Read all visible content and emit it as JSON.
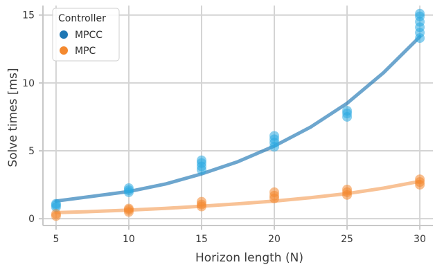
{
  "chart_data": {
    "type": "scatter",
    "title": "",
    "xlabel": "Horizon length (N)",
    "ylabel": "Solve times [ms]",
    "xlim": [
      4.1,
      30.9
    ],
    "ylim": [
      -0.5,
      15.7
    ],
    "xticks": [
      5,
      10,
      15,
      20,
      25,
      30
    ],
    "yticks": [
      0,
      5,
      10,
      15
    ],
    "grid": true,
    "legend": {
      "title": "Controller",
      "position": "top-left"
    },
    "series": [
      {
        "name": "MPCC",
        "color": "#1f77b4",
        "marker_color": "#29aae2",
        "points": [
          {
            "x": 5,
            "y": 0.85
          },
          {
            "x": 5,
            "y": 1.0
          },
          {
            "x": 5,
            "y": 1.1
          },
          {
            "x": 10,
            "y": 1.95
          },
          {
            "x": 10,
            "y": 2.1
          },
          {
            "x": 10,
            "y": 2.25
          },
          {
            "x": 15,
            "y": 3.6
          },
          {
            "x": 15,
            "y": 3.85
          },
          {
            "x": 15,
            "y": 4.1
          },
          {
            "x": 15,
            "y": 4.3
          },
          {
            "x": 20,
            "y": 5.3
          },
          {
            "x": 20,
            "y": 5.6
          },
          {
            "x": 20,
            "y": 5.85
          },
          {
            "x": 20,
            "y": 6.1
          },
          {
            "x": 25,
            "y": 7.5
          },
          {
            "x": 25,
            "y": 7.75
          },
          {
            "x": 25,
            "y": 7.95
          },
          {
            "x": 30,
            "y": 13.3
          },
          {
            "x": 30,
            "y": 13.7
          },
          {
            "x": 30,
            "y": 14.1
          },
          {
            "x": 30,
            "y": 14.5
          },
          {
            "x": 30,
            "y": 14.9
          },
          {
            "x": 30,
            "y": 15.1
          }
        ],
        "fit": [
          {
            "x": 5,
            "y": 1.3
          },
          {
            "x": 7.5,
            "y": 1.65
          },
          {
            "x": 10,
            "y": 2.0
          },
          {
            "x": 12.5,
            "y": 2.55
          },
          {
            "x": 15,
            "y": 3.3
          },
          {
            "x": 17.5,
            "y": 4.2
          },
          {
            "x": 20,
            "y": 5.35
          },
          {
            "x": 22.5,
            "y": 6.75
          },
          {
            "x": 25,
            "y": 8.5
          },
          {
            "x": 27.5,
            "y": 10.75
          },
          {
            "x": 30,
            "y": 13.4
          }
        ]
      },
      {
        "name": "MPC",
        "color": "#f5a25d",
        "marker_color": "#f4892f",
        "points": [
          {
            "x": 5,
            "y": 0.2
          },
          {
            "x": 5,
            "y": 0.35
          },
          {
            "x": 10,
            "y": 0.5
          },
          {
            "x": 10,
            "y": 0.65
          },
          {
            "x": 10,
            "y": 0.75
          },
          {
            "x": 15,
            "y": 0.9
          },
          {
            "x": 15,
            "y": 1.05
          },
          {
            "x": 15,
            "y": 1.25
          },
          {
            "x": 20,
            "y": 1.5
          },
          {
            "x": 20,
            "y": 1.7
          },
          {
            "x": 20,
            "y": 1.95
          },
          {
            "x": 25,
            "y": 1.75
          },
          {
            "x": 25,
            "y": 1.95
          },
          {
            "x": 25,
            "y": 2.15
          },
          {
            "x": 30,
            "y": 2.5
          },
          {
            "x": 30,
            "y": 2.7
          },
          {
            "x": 30,
            "y": 2.9
          }
        ],
        "fit": [
          {
            "x": 5,
            "y": 0.45
          },
          {
            "x": 7.5,
            "y": 0.53
          },
          {
            "x": 10,
            "y": 0.63
          },
          {
            "x": 12.5,
            "y": 0.76
          },
          {
            "x": 15,
            "y": 0.92
          },
          {
            "x": 17.5,
            "y": 1.1
          },
          {
            "x": 20,
            "y": 1.3
          },
          {
            "x": 22.5,
            "y": 1.55
          },
          {
            "x": 25,
            "y": 1.85
          },
          {
            "x": 27.5,
            "y": 2.25
          },
          {
            "x": 30,
            "y": 2.75
          }
        ]
      }
    ]
  }
}
